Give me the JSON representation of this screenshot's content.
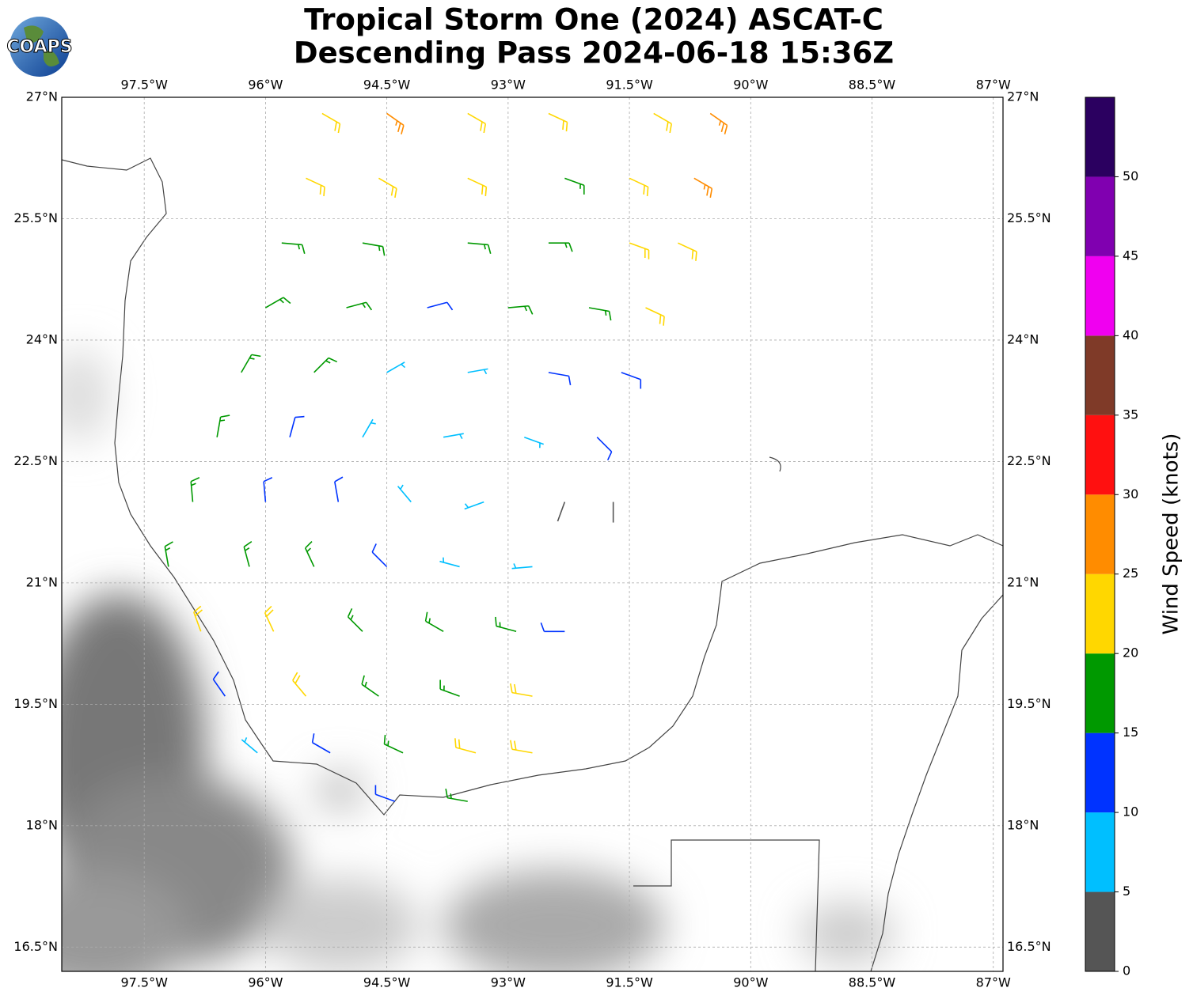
{
  "logo": "COAPS",
  "chart_data": {
    "type": "wind_barbs",
    "title": [
      "Tropical Storm One (2024) ASCAT-C",
      "Descending Pass 2024-06-18 15:36Z"
    ],
    "xlim": [
      -98.52,
      -86.88
    ],
    "ylim": [
      16.2,
      27.0
    ],
    "grid": true,
    "xticks": [
      {
        "value": -97.5,
        "label": "97.5°W"
      },
      {
        "value": -96,
        "label": "96°W"
      },
      {
        "value": -94.5,
        "label": "94.5°W"
      },
      {
        "value": -93,
        "label": "93°W"
      },
      {
        "value": -91.5,
        "label": "91.5°W"
      },
      {
        "value": -90,
        "label": "90°W"
      },
      {
        "value": -88.5,
        "label": "88.5°W"
      },
      {
        "value": -87,
        "label": "87°W"
      }
    ],
    "yticks": [
      {
        "value": 16.5,
        "label": "16.5°N"
      },
      {
        "value": 18,
        "label": "18°N"
      },
      {
        "value": 19.5,
        "label": "19.5°N"
      },
      {
        "value": 21,
        "label": "21°N"
      },
      {
        "value": 22.5,
        "label": "22.5°N"
      },
      {
        "value": 24,
        "label": "24°N"
      },
      {
        "value": 25.5,
        "label": "25.5°N"
      },
      {
        "value": 27,
        "label": "27°N"
      }
    ],
    "colorbar": {
      "label": "Wind Speed (knots)",
      "bounds": [
        0,
        5,
        10,
        15,
        20,
        25,
        30,
        35,
        40,
        45,
        50,
        55
      ],
      "colors": [
        "#555555",
        "#00bfff",
        "#0033ff",
        "#009900",
        "#ffd700",
        "#ff8c00",
        "#ff1010",
        "#7f3a28",
        "#f000f0",
        "#8000b0",
        "#2b0060"
      ],
      "ticks": [
        0,
        5,
        10,
        15,
        20,
        25,
        30,
        35,
        40,
        45,
        50
      ]
    },
    "wind": {
      "lon": [
        -95.3,
        -94.5,
        -93.5,
        -92.5,
        -91.2,
        -90.5,
        -95.5,
        -94.6,
        -93.5,
        -92.3,
        -91.5,
        -90.7,
        -95.8,
        -94.8,
        -93.5,
        -92.5,
        -91.5,
        -90.9,
        -96.0,
        -95.0,
        -94.0,
        -93.0,
        -92.0,
        -91.3,
        -96.3,
        -95.4,
        -94.5,
        -93.5,
        -92.5,
        -91.6,
        -96.6,
        -95.7,
        -94.8,
        -93.8,
        -92.8,
        -91.9,
        -96.9,
        -96.0,
        -95.1,
        -94.2,
        -93.3,
        -92.3,
        -91.7,
        -97.2,
        -96.2,
        -95.4,
        -94.5,
        -93.6,
        -92.7,
        -96.8,
        -95.9,
        -94.8,
        -93.8,
        -92.9,
        -92.3,
        -96.5,
        -95.5,
        -94.6,
        -93.6,
        -92.7,
        -96.1,
        -95.2,
        -94.3,
        -93.4,
        -92.7,
        -94.4,
        -93.5
      ],
      "lat": [
        26.8,
        26.8,
        26.8,
        26.8,
        26.8,
        26.8,
        26.0,
        26.0,
        26.0,
        26.0,
        26.0,
        26.0,
        25.2,
        25.2,
        25.2,
        25.2,
        25.2,
        25.2,
        24.4,
        24.4,
        24.4,
        24.4,
        24.4,
        24.4,
        23.6,
        23.6,
        23.6,
        23.6,
        23.6,
        23.6,
        22.8,
        22.8,
        22.8,
        22.8,
        22.8,
        22.8,
        22.0,
        22.0,
        22.0,
        22.0,
        22.0,
        22.0,
        22.0,
        21.2,
        21.2,
        21.2,
        21.2,
        21.2,
        21.2,
        20.4,
        20.4,
        20.4,
        20.4,
        20.4,
        20.4,
        19.6,
        19.6,
        19.6,
        19.6,
        19.6,
        18.9,
        18.9,
        18.9,
        18.9,
        18.9,
        18.3,
        18.3
      ],
      "speed": [
        22,
        27,
        24,
        22,
        23,
        27,
        22,
        20,
        22,
        18,
        22,
        26,
        18,
        18,
        17,
        18,
        22,
        24,
        18,
        16,
        13,
        16,
        18,
        24,
        17,
        15,
        8,
        8,
        12,
        14,
        17,
        13,
        8,
        7,
        8,
        12,
        17,
        14,
        12,
        9,
        7,
        3,
        4,
        18,
        18,
        15,
        12,
        9,
        8,
        22,
        22,
        17,
        16,
        17,
        12,
        14,
        22,
        18,
        18,
        22,
        9,
        13,
        18,
        22,
        22,
        14,
        18
      ],
      "direction": [
        120,
        125,
        120,
        115,
        120,
        125,
        115,
        120,
        115,
        110,
        115,
        120,
        95,
        100,
        95,
        90,
        110,
        115,
        60,
        75,
        75,
        85,
        100,
        115,
        30,
        45,
        60,
        80,
        100,
        110,
        10,
        15,
        30,
        80,
        110,
        135,
        355,
        355,
        350,
        320,
        250,
        200,
        180,
        350,
        345,
        335,
        315,
        285,
        265,
        340,
        335,
        315,
        300,
        285,
        270,
        325,
        320,
        305,
        290,
        280,
        310,
        300,
        295,
        285,
        280,
        290,
        280
      ]
    }
  }
}
